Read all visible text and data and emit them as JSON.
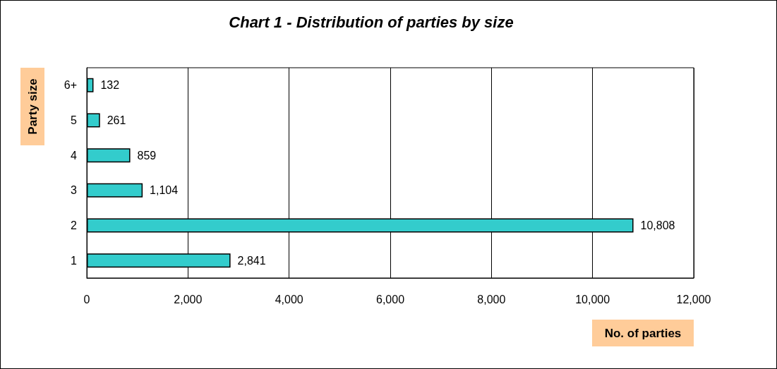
{
  "chart_data": {
    "type": "bar",
    "orientation": "horizontal",
    "title": "Chart 1 - Distribution of parties by size",
    "xlabel": "No. of parties",
    "ylabel": "Party size",
    "categories": [
      "6+",
      "5",
      "4",
      "3",
      "2",
      "1"
    ],
    "values": [
      132,
      261,
      859,
      1104,
      10808,
      2841
    ],
    "value_labels": [
      "132",
      "261",
      "859",
      "1,104",
      "10,808",
      "2,841"
    ],
    "color": "#33cccc",
    "xlim": [
      0,
      12000
    ],
    "xticks": [
      0,
      {
        "value": 2000,
        "label": "2,000"
      },
      {
        "value": 4000,
        "label": "4,000"
      },
      {
        "value": 6000,
        "label": "6,000"
      },
      {
        "value": 8000,
        "label": "8,000"
      },
      {
        "value": 10000,
        "label": "10,000"
      },
      {
        "value": 12000,
        "label": "12,000"
      }
    ],
    "grid": "x"
  }
}
